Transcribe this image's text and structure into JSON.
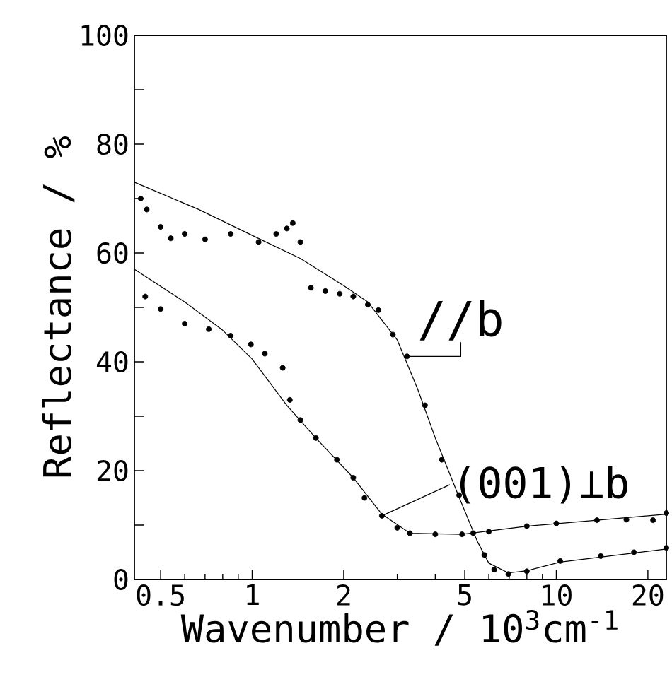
{
  "chart_data": {
    "type": "scatter",
    "xlabel": "Wavenumber / 10$^{3}$cm$^{-1}$",
    "ylabel": "Reflectance / %",
    "log": "x",
    "xlim": [
      0.41,
      23
    ],
    "ylim": [
      0,
      100
    ],
    "xticks": [
      0.5,
      1,
      2,
      5,
      10,
      20
    ],
    "yticks": [
      0,
      {
        "value": 10,
        "label": null
      },
      20,
      {
        "value": 30,
        "label": null
      },
      40,
      {
        "value": 50,
        "label": null
      },
      60,
      {
        "value": 70,
        "label": null
      },
      80,
      {
        "value": 90,
        "label": null
      },
      100
    ],
    "series": [
      {
        "name": "//b",
        "color": "#000000",
        "x": [
          0.43,
          0.45,
          0.5,
          0.54,
          0.6,
          0.7,
          0.85,
          1.05,
          1.2,
          1.3,
          1.36,
          1.44,
          1.56,
          1.74,
          1.94,
          2.15,
          2.4,
          2.6,
          2.9,
          3.23,
          3.7,
          4.2,
          4.79,
          5.33,
          5.8,
          6.25,
          6.96,
          8.0,
          10.3,
          14.0,
          18.0,
          23.0
        ],
        "values": [
          70,
          68,
          64.8,
          62.7,
          63.5,
          62.5,
          63.5,
          62,
          63.5,
          64.5,
          65.5,
          62,
          53.6,
          53,
          52.5,
          52,
          50.5,
          49.5,
          45,
          41,
          32,
          22,
          15.5,
          8.5,
          4.5,
          1.8,
          1,
          1.5,
          3.4,
          4.3,
          5,
          5.8
        ]
      },
      {
        "name": "(001)⊥b",
        "color": "#000000",
        "x": [
          0.445,
          0.5,
          0.6,
          0.72,
          0.85,
          0.99,
          1.1,
          1.26,
          1.33,
          1.44,
          1.62,
          1.9,
          2.15,
          2.34,
          2.67,
          3.0,
          3.3,
          4.0,
          4.9,
          6.0,
          8.0,
          10.0,
          13.6,
          17.0,
          20.8,
          23.0
        ],
        "values": [
          52,
          49.7,
          47,
          46,
          44.8,
          43.2,
          41.5,
          38.9,
          33,
          29.3,
          26,
          22,
          18.7,
          15,
          11.7,
          9.5,
          8.5,
          8.3,
          8.3,
          8.8,
          9.8,
          10.3,
          10.9,
          11,
          10.9,
          12.2
        ]
      },
      {
        "type": "line",
        "color": "#000000",
        "x": [
          0.41,
          0.667,
          1.02,
          1.44,
          2.0,
          2.4,
          3.0,
          3.5,
          4.0,
          4.8,
          5.5,
          6.0,
          6.96,
          8.0,
          10.3,
          23.0
        ],
        "values": [
          73,
          68,
          63,
          59,
          54,
          51,
          44,
          35,
          26,
          15,
          7,
          3,
          1.2,
          1.6,
          3.2,
          5.6
        ]
      },
      {
        "type": "line",
        "color": "#000000",
        "x": [
          0.41,
          0.6,
          0.8,
          1.0,
          1.3,
          1.62,
          2.15,
          2.67,
          3.3,
          4.9,
          8.0,
          13.6,
          23.0
        ],
        "values": [
          57,
          51,
          45.8,
          40.5,
          32,
          26,
          18.7,
          12,
          8.5,
          8.3,
          9.8,
          10.9,
          12
        ]
      }
    ]
  }
}
